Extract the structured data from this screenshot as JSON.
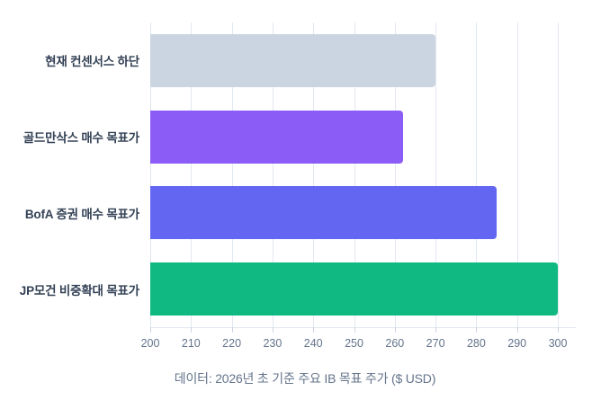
{
  "page": {
    "background": "#ffffff"
  },
  "chart_data": {
    "type": "bar",
    "orientation": "horizontal",
    "title": "",
    "categories": [
      "현재 컨센서스 하단",
      "골드만삭스 매수 목표가",
      "BofA 증권 매수 목표가",
      "JP모건 비중확대 목표가"
    ],
    "values": [
      270,
      262,
      285,
      300
    ],
    "bar_colors": [
      "#CBD5E1",
      "#8B5CF6",
      "#6366F1",
      "#10B981"
    ],
    "xlim": [
      200,
      304
    ],
    "xticks": [
      200,
      210,
      220,
      230,
      240,
      250,
      260,
      270,
      280,
      290,
      300
    ],
    "grid": true,
    "legend": false,
    "caption": "데이터: 2026년 초 기준 주요 IB 목표 주가 ($ USD)"
  }
}
